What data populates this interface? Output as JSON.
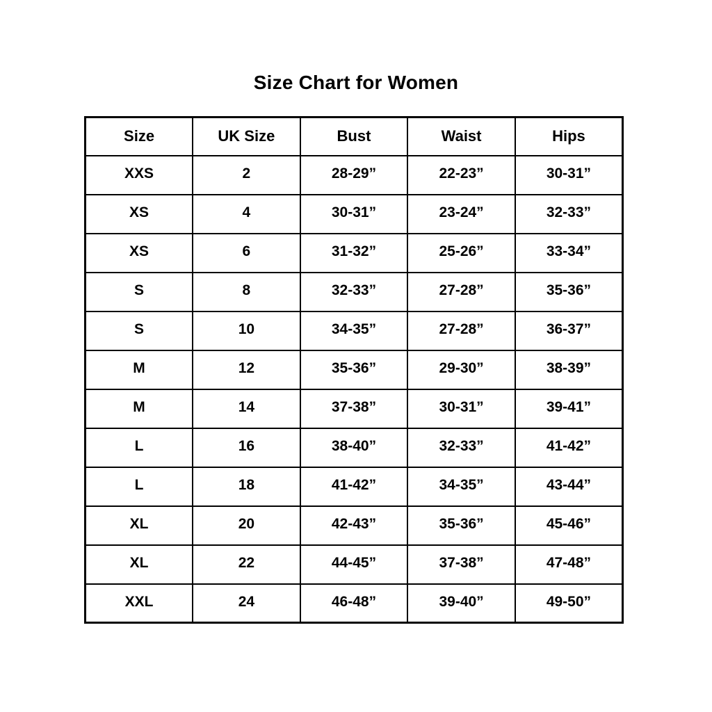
{
  "title": "Size Chart for Women",
  "chart_data": {
    "type": "table",
    "title": "Size Chart for Women",
    "columns": [
      "Size",
      "UK Size",
      "Bust",
      "Waist",
      "Hips"
    ],
    "rows": [
      [
        "XXS",
        "2",
        "28-29”",
        "22-23”",
        "30-31”"
      ],
      [
        "XS",
        "4",
        "30-31”",
        "23-24”",
        "32-33”"
      ],
      [
        "XS",
        "6",
        "31-32”",
        "25-26”",
        "33-34”"
      ],
      [
        "S",
        "8",
        "32-33”",
        "27-28”",
        "35-36”"
      ],
      [
        "S",
        "10",
        "34-35”",
        "27-28”",
        "36-37”"
      ],
      [
        "M",
        "12",
        "35-36”",
        "29-30”",
        "38-39”"
      ],
      [
        "M",
        "14",
        "37-38”",
        "30-31”",
        "39-41”"
      ],
      [
        "L",
        "16",
        "38-40”",
        "32-33”",
        "41-42”"
      ],
      [
        "L",
        "18",
        "41-42”",
        "34-35”",
        "43-44”"
      ],
      [
        "XL",
        "20",
        "42-43”",
        "35-36”",
        "45-46”"
      ],
      [
        "XL",
        "22",
        "44-45”",
        "37-38”",
        "47-48”"
      ],
      [
        "XXL",
        "24",
        "46-48”",
        "39-40”",
        "49-50”"
      ]
    ],
    "layout": {
      "grid": "on",
      "border_color": "#000000",
      "background": "#ffffff"
    }
  }
}
